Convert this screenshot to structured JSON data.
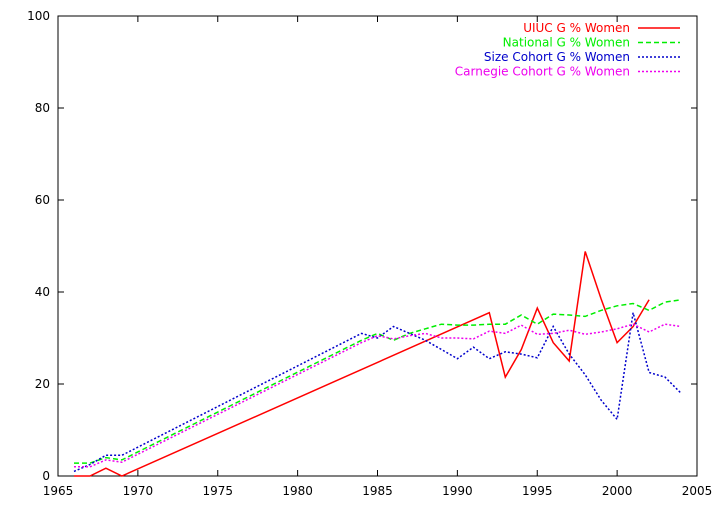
{
  "chart_data": {
    "type": "line",
    "title": "",
    "xlabel": "",
    "ylabel": "",
    "xlim": [
      1965,
      2005
    ],
    "ylim": [
      0,
      100
    ],
    "grid": false,
    "legend_position": "top-right",
    "x_ticks": [
      1965,
      1970,
      1975,
      1980,
      1985,
      1990,
      1995,
      2000,
      2005
    ],
    "y_ticks": [
      0,
      20,
      40,
      60,
      80,
      100
    ],
    "x_tick_labels": [
      "1965",
      "1970",
      "1975",
      "1980",
      "1985",
      "1990",
      "1995",
      "2000",
      "2005"
    ],
    "y_tick_labels": [
      "0",
      "20",
      "40",
      "60",
      "80",
      "100"
    ],
    "series": [
      {
        "name": "UIUC G % Women",
        "color": "#ff0000",
        "dash": "solid",
        "x": [
          1966,
          1967,
          1968,
          1969,
          1992,
          1993,
          1994,
          1995,
          1996,
          1997,
          1998,
          1999,
          2000,
          2001,
          2002
        ],
        "y": [
          0,
          0,
          1.7,
          0,
          35.5,
          21.5,
          27.5,
          36.5,
          29.0,
          25.0,
          48.8,
          38.5,
          29.0,
          32.5,
          38.3
        ]
      },
      {
        "name": "National G % Women",
        "color": "#00ee00",
        "dash": "dashed",
        "x": [
          1966,
          1967,
          1968,
          1969,
          1984,
          1985,
          1986,
          1987,
          1988,
          1989,
          1990,
          1991,
          1992,
          1993,
          1994,
          1995,
          1996,
          1997,
          1998,
          1999,
          2000,
          2001,
          2002,
          2003,
          2004
        ],
        "y": [
          2.8,
          2.8,
          4.0,
          3.5,
          29.5,
          31.0,
          29.5,
          31.0,
          32.0,
          33.0,
          32.8,
          32.8,
          33.0,
          33.0,
          35.0,
          33.0,
          35.2,
          35.0,
          34.7,
          36.0,
          37.0,
          37.5,
          36.0,
          37.8,
          38.3
        ]
      },
      {
        "name": "Size Cohort G % Women",
        "color": "#0000cc",
        "dash": "dotted",
        "x": [
          1966,
          1967,
          1968,
          1969,
          1984,
          1985,
          1986,
          1987,
          1988,
          1989,
          1990,
          1991,
          1992,
          1993,
          1994,
          1995,
          1996,
          1997,
          1998,
          1999,
          2000,
          2001,
          2002,
          2003,
          2004
        ],
        "y": [
          1.0,
          2.5,
          4.5,
          4.5,
          31.0,
          30.0,
          32.5,
          31.0,
          29.5,
          27.5,
          25.5,
          28.0,
          25.5,
          27.0,
          26.5,
          25.7,
          32.5,
          26.5,
          22.0,
          16.5,
          12.3,
          35.5,
          22.5,
          21.5,
          18.0
        ]
      },
      {
        "name": "Carnegie Cohort G % Women",
        "color": "#ee00ee",
        "dash": "dotted",
        "x": [
          1966,
          1967,
          1968,
          1969,
          1984,
          1985,
          1986,
          1987,
          1988,
          1989,
          1990,
          1991,
          1992,
          1993,
          1994,
          1995,
          1996,
          1997,
          1998,
          1999,
          2000,
          2001,
          2002,
          2003,
          2004
        ],
        "y": [
          2.0,
          2.0,
          3.5,
          3.0,
          29.0,
          30.5,
          29.8,
          30.5,
          31.0,
          30.0,
          30.0,
          29.8,
          31.5,
          31.0,
          32.8,
          30.8,
          31.0,
          31.7,
          30.8,
          31.3,
          32.0,
          33.0,
          31.3,
          33.0,
          32.5
        ]
      }
    ]
  }
}
